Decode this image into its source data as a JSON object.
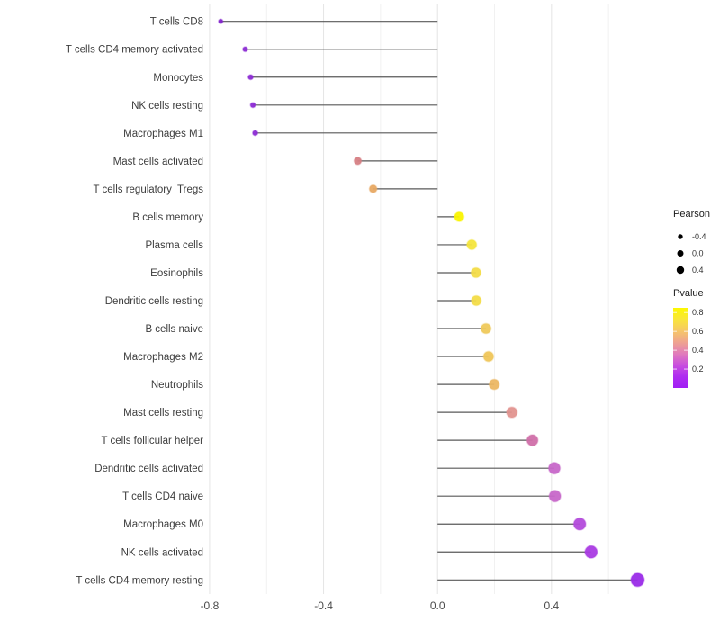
{
  "chart_data": {
    "type": "lollipop",
    "orientation": "horizontal",
    "title": "",
    "xlabel": "",
    "ylabel": "",
    "x_axis": {
      "domain": [
        -0.833,
        0.775
      ],
      "ticks": [
        -0.8,
        -0.4,
        0.0,
        0.4
      ],
      "tick_labels": [
        "-0.8",
        "-0.4",
        "0.0",
        "0.4"
      ],
      "minor_ticks": [
        -0.6,
        -0.2,
        0.2,
        0.6
      ],
      "grid": "vertical-only"
    },
    "encoding": {
      "x_and_size": "Pearson correlation",
      "color": "Pvalue"
    },
    "points": [
      {
        "label": "T cells CD8",
        "pearson": -0.761,
        "pvalue_approx": 0.03,
        "color": "#8324CC"
      },
      {
        "label": "T cells CD4 memory activated",
        "pearson": -0.675,
        "pvalue_approx": 0.04,
        "color": "#8C2BD4"
      },
      {
        "label": "Monocytes",
        "pearson": -0.656,
        "pvalue_approx": 0.04,
        "color": "#8C2BD4"
      },
      {
        "label": "NK cells resting",
        "pearson": -0.648,
        "pvalue_approx": 0.04,
        "color": "#8C2BD4"
      },
      {
        "label": "Macrophages M1",
        "pearson": -0.64,
        "pvalue_approx": 0.04,
        "color": "#8C2BD4"
      },
      {
        "label": "Mast cells activated",
        "pearson": -0.28,
        "pvalue_approx": 0.45,
        "color": "#D67F84"
      },
      {
        "label": "T cells regulatory  Tregs",
        "pearson": -0.226,
        "pvalue_approx": 0.56,
        "color": "#E8A963"
      },
      {
        "label": "B cells memory",
        "pearson": 0.076,
        "pvalue_approx": 0.82,
        "color": "#FAF400"
      },
      {
        "label": "Plasma cells",
        "pearson": 0.12,
        "pvalue_approx": 0.74,
        "color": "#F4E53C"
      },
      {
        "label": "Eosinophils",
        "pearson": 0.135,
        "pvalue_approx": 0.71,
        "color": "#F3DC48"
      },
      {
        "label": "Dendritic cells resting",
        "pearson": 0.136,
        "pvalue_approx": 0.71,
        "color": "#F3DC48"
      },
      {
        "label": "B cells naive",
        "pearson": 0.17,
        "pvalue_approx": 0.65,
        "color": "#EFC95B"
      },
      {
        "label": "Macrophages M2",
        "pearson": 0.179,
        "pvalue_approx": 0.64,
        "color": "#EFC558"
      },
      {
        "label": "Neutrophils",
        "pearson": 0.199,
        "pvalue_approx": 0.58,
        "color": "#ECB763"
      },
      {
        "label": "Mast cells resting",
        "pearson": 0.261,
        "pvalue_approx": 0.44,
        "color": "#E2938F"
      },
      {
        "label": "T cells follicular helper",
        "pearson": 0.333,
        "pvalue_approx": 0.33,
        "color": "#D06FA9"
      },
      {
        "label": "Dendritic cells activated",
        "pearson": 0.41,
        "pvalue_approx": 0.24,
        "color": "#C767C9"
      },
      {
        "label": "T cells CD4 naive",
        "pearson": 0.412,
        "pvalue_approx": 0.24,
        "color": "#C767C9"
      },
      {
        "label": "Macrophages M0",
        "pearson": 0.499,
        "pvalue_approx": 0.14,
        "color": "#B34BDB"
      },
      {
        "label": "NK cells activated",
        "pearson": 0.539,
        "pvalue_approx": 0.11,
        "color": "#AA3BE3"
      },
      {
        "label": "T cells CD4 memory resting",
        "pearson": 0.702,
        "pvalue_approx": 0.06,
        "color": "#9A2BE8"
      }
    ],
    "legend_size": {
      "title": "Pearson",
      "entry_labels": [
        "-0.4",
        "0.0",
        "0.4"
      ],
      "entry_values": [
        -0.4,
        0.0,
        0.4
      ]
    },
    "legend_color": {
      "title": "Pvalue",
      "tick_labels": [
        "0.8",
        "0.6",
        "0.4",
        "0.2"
      ],
      "tick_values": [
        0.8,
        0.6,
        0.4,
        0.2
      ],
      "domain": [
        0.0,
        0.85
      ],
      "gradient_top_to_bottom": [
        "#FCF800",
        "#F9E63A",
        "#F6C767",
        "#EFA390",
        "#E17CBB",
        "#C94FDE",
        "#AE2CF0",
        "#A11EF4"
      ]
    },
    "colors": {
      "stem": "#595959",
      "grid_major": "#E4E4E4",
      "grid_minor": "#F1F1F1",
      "axis_text": "#4A4A4A",
      "label_text": "#3D3D3D",
      "legend_title_text": "#1A1A1A",
      "legend_entry_text": "#333333",
      "background": "#FFFFFF"
    }
  }
}
